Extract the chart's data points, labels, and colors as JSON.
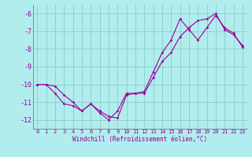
{
  "xlabel": "Windchill (Refroidissement éolien,°C)",
  "hours": [
    0,
    1,
    2,
    3,
    4,
    5,
    6,
    7,
    8,
    9,
    10,
    11,
    12,
    13,
    14,
    15,
    16,
    17,
    18,
    19,
    20,
    21,
    22,
    23
  ],
  "line1": [
    -10.0,
    -10.0,
    -10.5,
    -11.1,
    -11.2,
    -11.5,
    -11.1,
    -11.6,
    -12.0,
    -11.5,
    -10.5,
    -10.5,
    -10.4,
    -9.3,
    -8.2,
    -7.5,
    -6.3,
    -6.9,
    -7.5,
    -6.8,
    -6.1,
    -6.8,
    -7.1,
    -7.9
  ],
  "line2": [
    -10.0,
    -10.0,
    -10.1,
    -10.6,
    -11.0,
    -11.5,
    -11.1,
    -11.5,
    -11.8,
    -11.9,
    -10.6,
    -10.5,
    -10.5,
    -9.6,
    -8.7,
    -8.2,
    -7.3,
    -6.8,
    -6.4,
    -6.3,
    -6.0,
    -6.9,
    -7.2,
    -7.8
  ],
  "line_color": "#990099",
  "bg_color": "#b2edee",
  "grid_color": "#88cccc",
  "ylim": [
    -12.5,
    -5.5
  ],
  "yticks": [
    -12,
    -11,
    -10,
    -9,
    -8,
    -7,
    -6
  ],
  "xtick_labels": [
    "0",
    "1",
    "2",
    "3",
    "4",
    "5",
    "6",
    "7",
    "8",
    "9",
    "10",
    "11",
    "12",
    "13",
    "14",
    "15",
    "16",
    "17",
    "18",
    "19",
    "20",
    "21",
    "22",
    "23"
  ]
}
